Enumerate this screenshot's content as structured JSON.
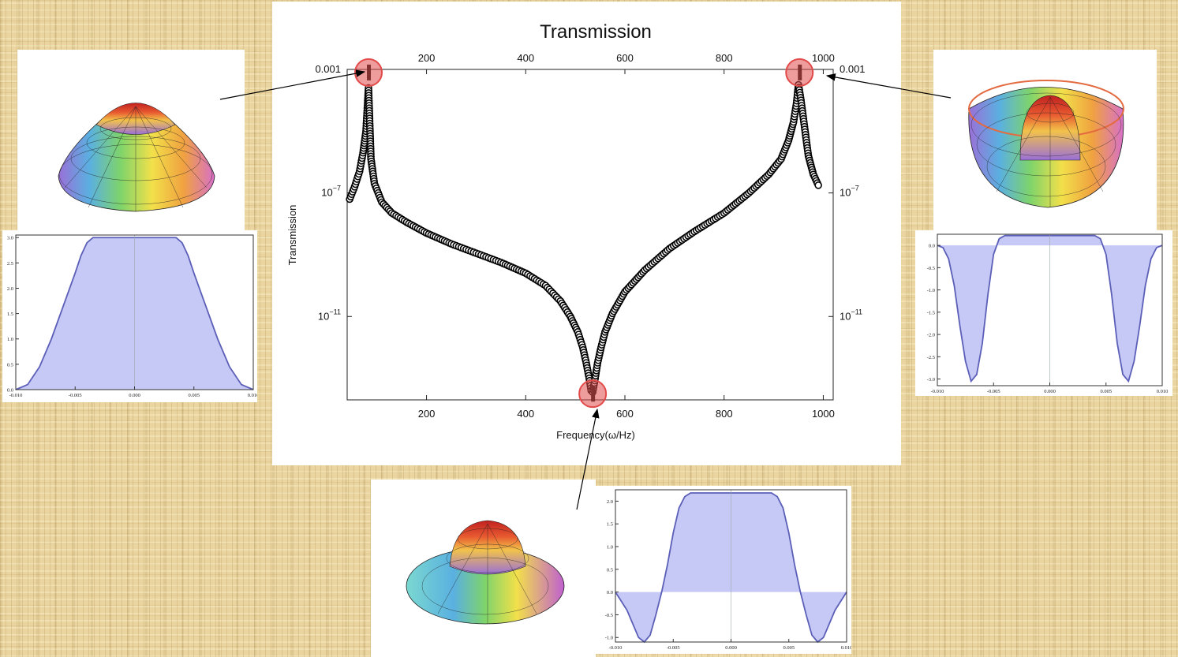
{
  "chart_data": [
    {
      "type": "scatter",
      "title": "Transmission",
      "xlabel": "Frequency(ω/Hz)",
      "ylabel": "Transmission",
      "xlim": [
        40,
        1020
      ],
      "ylim_log10": [
        -13.7,
        -3
      ],
      "log_y": true,
      "x_ticks": [
        "200",
        "400",
        "600",
        "800",
        "1000"
      ],
      "x_tick_values": [
        200,
        400,
        600,
        800,
        1000
      ],
      "y_ticks": [
        {
          "value": -3,
          "mantissa": "0.001",
          "exp": ""
        },
        {
          "value": -7,
          "mantissa": "10",
          "exp": "−7"
        },
        {
          "value": -11,
          "mantissa": "10",
          "exp": "−11"
        }
      ],
      "series": [
        {
          "x": [
            45,
            55,
            65,
            72,
            78,
            83,
            88,
            95,
            110,
            130,
            160,
            200,
            250,
            300,
            350,
            400,
            440,
            470,
            490,
            505,
            515,
            522,
            528,
            532,
            535,
            540,
            545,
            552,
            560,
            575,
            600,
            640,
            690,
            740,
            800,
            850,
            890,
            915,
            930,
            940,
            946,
            950,
            955,
            960,
            965,
            970,
            980,
            990
          ],
          "log10y": [
            -7.2,
            -6.8,
            -6.3,
            -5.7,
            -5.0,
            -3.6,
            -5.9,
            -6.7,
            -7.3,
            -7.65,
            -7.95,
            -8.3,
            -8.65,
            -8.95,
            -9.25,
            -9.6,
            -10.0,
            -10.5,
            -11.0,
            -11.5,
            -12.0,
            -12.5,
            -13.0,
            -13.4,
            -13.45,
            -13.0,
            -12.5,
            -12.0,
            -11.5,
            -10.9,
            -10.2,
            -9.5,
            -8.8,
            -8.25,
            -7.65,
            -7.0,
            -6.4,
            -5.9,
            -5.3,
            -4.7,
            -4.1,
            -3.5,
            -4.0,
            -4.6,
            -5.2,
            -5.8,
            -6.4,
            -6.75
          ]
        }
      ],
      "highlights": [
        {
          "x": 83,
          "log10y": -3.1
        },
        {
          "x": 952,
          "log10y": -3.1
        },
        {
          "x": 535,
          "log10y": -13.5
        }
      ]
    },
    {
      "type": "area",
      "x_ticks": [
        "-0.010",
        "-0.005",
        "0.000",
        "0.005",
        "0.010"
      ],
      "y_ticks": [
        "0.0",
        "0.5",
        "1.0",
        "1.5",
        "2.0",
        "2.5",
        "3.0"
      ],
      "xlim": [
        -0.01,
        0.01
      ],
      "ylim": [
        0,
        3.05
      ],
      "x": [
        -0.01,
        -0.009,
        -0.008,
        -0.007,
        -0.006,
        -0.005,
        -0.0045,
        -0.004,
        -0.0035,
        0,
        0.0035,
        0.004,
        0.0045,
        0.005,
        0.006,
        0.007,
        0.008,
        0.009,
        0.01
      ],
      "y": [
        0.0,
        0.1,
        0.45,
        1.0,
        1.65,
        2.3,
        2.65,
        2.9,
        3.0,
        3.0,
        3.0,
        2.9,
        2.65,
        2.3,
        1.65,
        1.0,
        0.45,
        0.1,
        0.0
      ]
    },
    {
      "type": "area",
      "x_ticks": [
        "-0.010",
        "-0.005",
        "0.000",
        "0.005",
        "0.010"
      ],
      "y_ticks": [
        "0.0",
        "-0.5",
        "-1.0",
        "-1.5",
        "-2.0",
        "-2.5",
        "-3.0"
      ],
      "xlim": [
        -0.01,
        0.01
      ],
      "ylim": [
        -3.15,
        0.25
      ],
      "x": [
        -0.01,
        -0.0095,
        -0.009,
        -0.0085,
        -0.008,
        -0.0075,
        -0.007,
        -0.0065,
        -0.006,
        -0.0055,
        -0.005,
        -0.0045,
        -0.004,
        -0.0035,
        0,
        0.0035,
        0.004,
        0.0045,
        0.005,
        0.0055,
        0.006,
        0.0065,
        0.007,
        0.0075,
        0.008,
        0.0085,
        0.009,
        0.0095,
        0.01
      ],
      "y": [
        0.0,
        -0.05,
        -0.3,
        -0.9,
        -1.8,
        -2.6,
        -3.05,
        -2.9,
        -2.2,
        -1.1,
        -0.2,
        0.15,
        0.22,
        0.22,
        0.22,
        0.22,
        0.22,
        0.15,
        -0.2,
        -1.1,
        -2.2,
        -2.9,
        -3.05,
        -2.6,
        -1.8,
        -0.9,
        -0.3,
        -0.05,
        0.0
      ]
    },
    {
      "type": "area",
      "x_ticks": [
        "-0.010",
        "-0.005",
        "0.000",
        "0.005",
        "0.010"
      ],
      "y_ticks": [
        "-1.0",
        "-0.5",
        "0.0",
        "0.5",
        "1.0",
        "1.5",
        "2.0"
      ],
      "xlim": [
        -0.01,
        0.01
      ],
      "ylim": [
        -1.1,
        2.25
      ],
      "x": [
        -0.01,
        -0.009,
        -0.008,
        -0.0075,
        -0.007,
        -0.0065,
        -0.006,
        -0.0055,
        -0.005,
        -0.0045,
        -0.004,
        -0.0035,
        0,
        0.0035,
        0.004,
        0.0045,
        0.005,
        0.0055,
        0.006,
        0.0065,
        0.007,
        0.0075,
        0.008,
        0.009,
        0.01
      ],
      "y": [
        0.0,
        -0.4,
        -1.0,
        -1.1,
        -0.95,
        -0.5,
        0.0,
        0.6,
        1.3,
        1.85,
        2.1,
        2.18,
        2.18,
        2.18,
        2.1,
        1.85,
        1.3,
        0.6,
        0.0,
        -0.5,
        -0.95,
        -1.1,
        -1.0,
        -0.4,
        0.0
      ]
    }
  ],
  "colors": {
    "fill": "#c6c8f5",
    "line": "#5b5fb7",
    "highlight": "#e24a4a"
  }
}
